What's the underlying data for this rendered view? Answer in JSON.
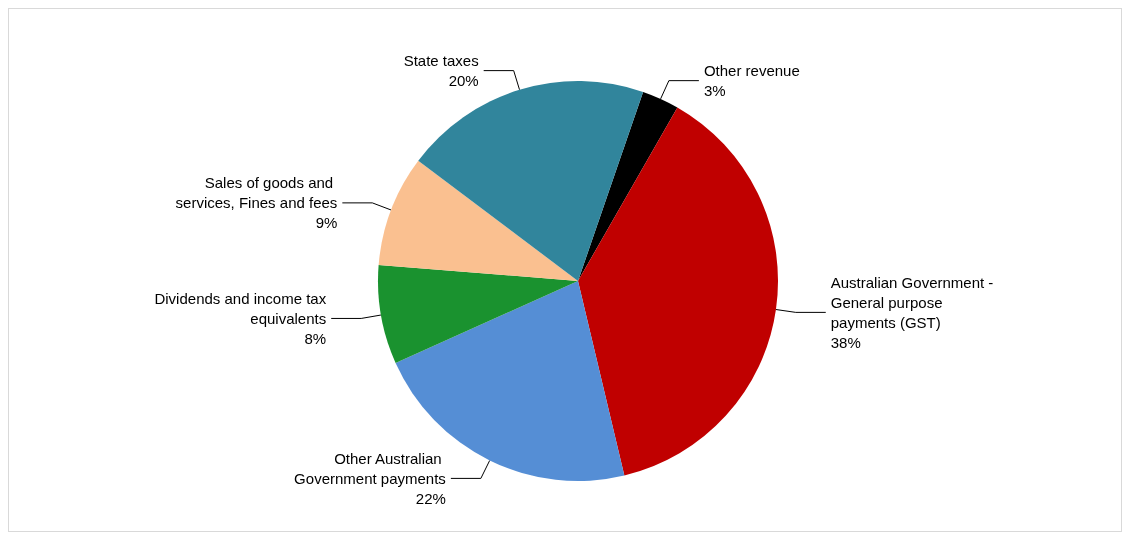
{
  "chart_data": {
    "type": "pie",
    "categories": [
      "Other revenue",
      "Australian Government - General purpose payments (GST)",
      "Other Australian Government payments",
      "Dividends and income tax equivalents",
      "Sales of goods and services, Fines and fees",
      "State taxes"
    ],
    "values": [
      3,
      38,
      22,
      8,
      9,
      20
    ],
    "colors": [
      "#000000",
      "#c00000",
      "#558ed5",
      "#1a922f",
      "#fac090",
      "#31859c"
    ],
    "value_labels": [
      "3%",
      "38%",
      "22%",
      "8%",
      "9%",
      "20%"
    ],
    "legend": false
  }
}
